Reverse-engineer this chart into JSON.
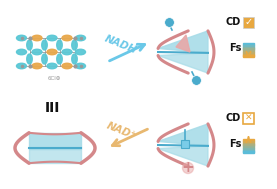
{
  "bg_color": "#ffffff",
  "cage_teal": "#5bc8d5",
  "cage_orange": "#e8a84c",
  "cage_gray": "#999999",
  "light_blue": "#a8dce8",
  "mid_blue": "#7acce8",
  "dark_blue": "#4aabcc",
  "pink_rim": "#d4888a",
  "pink_fill": "#e8a8a8",
  "nadh_color": "#6ac8e8",
  "nad_color": "#e8b870",
  "orange_box": "#e8a840",
  "fs_blue_top": "#5bbcd8",
  "fs_orange": "#e8a840",
  "white": "#ffffff",
  "black": "#111111",
  "nadh_label": "NADH",
  "nad_label": "NAD⁺",
  "cd_label": "CD",
  "fs_label": "Fs",
  "cage_label": "III",
  "charge_label": "6Cl⊕"
}
